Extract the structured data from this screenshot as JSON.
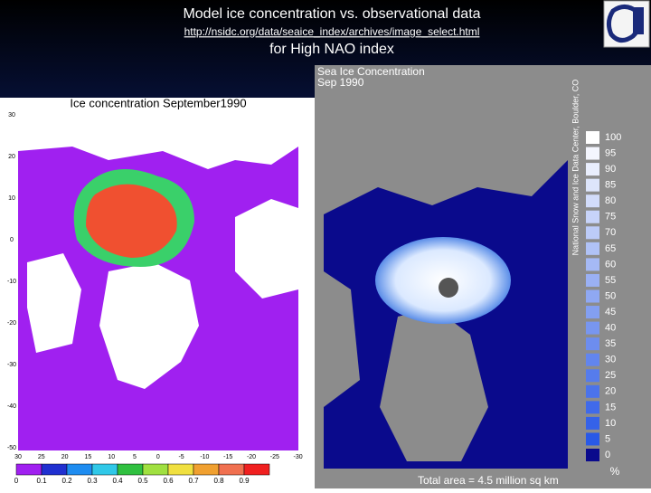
{
  "header": {
    "title": "Model ice concentration vs. observational data",
    "url": "http://nsidc.org/data/seaice_index/archives/image_select.html",
    "subtitle": "for High NAO index"
  },
  "model_map": {
    "title": "Ice concentration September1990",
    "y_labels": [
      "30",
      "20",
      "10",
      "0",
      "-10",
      "-20",
      "-30",
      "-40",
      "-50"
    ],
    "x_labels": [
      "30",
      "25",
      "20",
      "15",
      "10",
      "5",
      "0",
      "-5",
      "-10",
      "-15",
      "-20",
      "-25",
      "-30"
    ],
    "colorbar_labels": [
      "0",
      "0.1",
      "0.2",
      "0.3",
      "0.4",
      "0.5",
      "0.6",
      "0.7",
      "0.8",
      "0.9"
    ]
  },
  "observed_map": {
    "title": "Sea Ice Concentration",
    "date": "Sep 1990",
    "credit": "National Snow and Ice Data Center, Boulder, CO",
    "legend_labels": [
      "100",
      "95",
      "90",
      "85",
      "80",
      "75",
      "70",
      "65",
      "60",
      "55",
      "50",
      "45",
      "40",
      "35",
      "30",
      "25",
      "20",
      "15",
      "10",
      "5",
      "0"
    ],
    "unit": "%",
    "total_area": "Total area = 4.5 million sq km"
  }
}
